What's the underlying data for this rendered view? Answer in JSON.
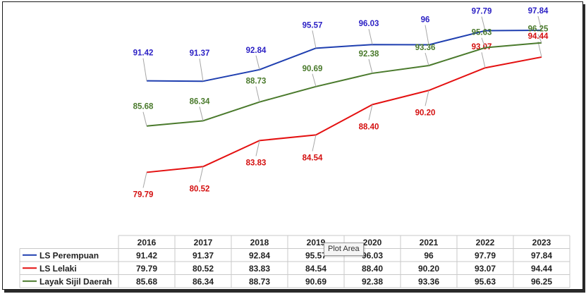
{
  "chart_data": {
    "type": "line",
    "categories": [
      "2016",
      "2017",
      "2018",
      "2019",
      "2020",
      "2021",
      "2022",
      "2023"
    ],
    "series": [
      {
        "name": "LS Perempuan",
        "color": "#1f3fb0",
        "label_color": "#2a1fc4",
        "values": [
          91.42,
          91.37,
          92.84,
          95.57,
          96.03,
          96,
          97.79,
          97.84
        ],
        "labels": [
          "91.42",
          "91.37",
          "92.84",
          "95.57",
          "96.03",
          "96",
          "97.79",
          "97.84"
        ]
      },
      {
        "name": "LS Lelaki",
        "color": "#e41010",
        "label_color": "#d40f0f",
        "values": [
          79.79,
          80.52,
          83.83,
          84.54,
          88.4,
          90.2,
          93.07,
          94.44
        ],
        "labels": [
          "79.79",
          "80.52",
          "83.83",
          "84.54",
          "88.40",
          "90.20",
          "93.07",
          "94.44"
        ]
      },
      {
        "name": "Layak Sijil Daerah",
        "color": "#4a7a2c",
        "label_color": "#4a7a2c",
        "values": [
          85.68,
          86.34,
          88.73,
          90.69,
          92.38,
          93.36,
          95.63,
          96.25
        ],
        "labels": [
          "85.68",
          "86.34",
          "88.73",
          "90.69",
          "92.38",
          "93.36",
          "95.63",
          "96.25"
        ]
      }
    ],
    "legend": "data-table-below",
    "grid": false
  },
  "tooltip": "Plot Area"
}
